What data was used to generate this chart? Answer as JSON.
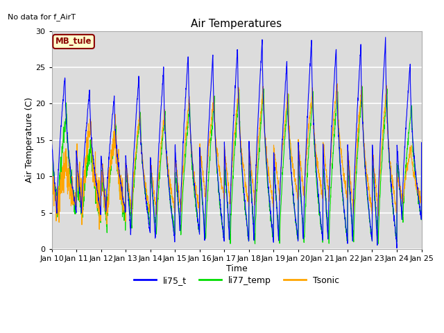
{
  "title": "Air Temperatures",
  "xlabel": "Time",
  "ylabel": "Air Temperature (C)",
  "ylim": [
    0,
    30
  ],
  "background_color": "#dcdcdc",
  "grid_color": "white",
  "text_no_data": "No data for f_AirT",
  "legend_label_box": "MB_tule",
  "legend_entries": [
    "li75_t",
    "li77_temp",
    "Tsonic"
  ],
  "line_colors": [
    "blue",
    "#00dd00",
    "orange"
  ],
  "x_tick_labels": [
    "Jan 10",
    "Jan 11",
    "Jan 12",
    "Jan 13",
    "Jan 14",
    "Jan 15",
    "Jan 16",
    "Jan 17",
    "Jan 18",
    "Jan 19",
    "Jan 20",
    "Jan 21",
    "Jan 22",
    "Jan 23",
    "Jan 24",
    "Jan 25"
  ],
  "yticks": [
    0,
    5,
    10,
    15,
    20,
    25,
    30
  ],
  "x_range": [
    0,
    15
  ]
}
